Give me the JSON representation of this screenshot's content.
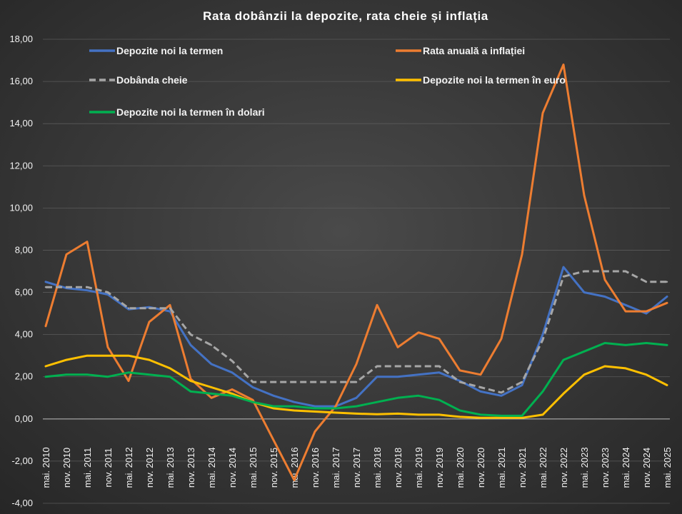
{
  "chart_data": {
    "type": "line",
    "title": "Rata dobânzii la depozite, rata cheie și inflația",
    "xlabel": "",
    "ylabel": "",
    "ylim": [
      -4,
      18
    ],
    "y_ticks": [
      "-4,00",
      "-2,00",
      "0,00",
      "2,00",
      "4,00",
      "6,00",
      "8,00",
      "10,00",
      "12,00",
      "14,00",
      "16,00",
      "18,00"
    ],
    "x_tick_labels": [
      "mai. 2010",
      "nov. 2010",
      "mai. 2011",
      "nov. 2011",
      "mai. 2012",
      "nov. 2012",
      "mai. 2013",
      "nov. 2013",
      "mai. 2014",
      "nov. 2014",
      "mai. 2015",
      "nov. 2015",
      "mai. 2016",
      "nov. 2016",
      "mai. 2017",
      "nov. 2017",
      "mai. 2018",
      "nov. 2018",
      "mai. 2019",
      "nov. 2019",
      "mai. 2020",
      "nov. 2020",
      "mai. 2021",
      "nov. 2021",
      "mai. 2022",
      "nov. 2022",
      "mai. 2023",
      "nov. 2023",
      "mai. 2024",
      "nov. 2024",
      "mai. 2025"
    ],
    "grid": true,
    "background": "#404040",
    "series": [
      {
        "name": "Depozite noi la termen",
        "color": "#4472c4",
        "dash": false,
        "points": [
          [
            "mai. 2010",
            6.5
          ],
          [
            "nov. 2010",
            6.2
          ],
          [
            "mai. 2011",
            6.1
          ],
          [
            "nov. 2011",
            5.9
          ],
          [
            "mai. 2012",
            5.2
          ],
          [
            "nov. 2012",
            5.3
          ],
          [
            "mai. 2013",
            5.1
          ],
          [
            "nov. 2013",
            3.5
          ],
          [
            "mai. 2014",
            2.6
          ],
          [
            "nov. 2014",
            2.2
          ],
          [
            "mai. 2015",
            1.5
          ],
          [
            "nov. 2015",
            1.1
          ],
          [
            "mai. 2016",
            0.8
          ],
          [
            "nov. 2016",
            0.6
          ],
          [
            "mai. 2017",
            0.6
          ],
          [
            "nov. 2017",
            1.0
          ],
          [
            "mai. 2018",
            2.0
          ],
          [
            "nov. 2018",
            2.0
          ],
          [
            "mai. 2019",
            2.1
          ],
          [
            "nov. 2019",
            2.2
          ],
          [
            "mai. 2020",
            1.8
          ],
          [
            "nov. 2020",
            1.3
          ],
          [
            "mai. 2021",
            1.1
          ],
          [
            "nov. 2021",
            1.6
          ],
          [
            "mai. 2022",
            4.0
          ],
          [
            "nov. 2022",
            7.2
          ],
          [
            "mai. 2023",
            6.0
          ],
          [
            "nov. 2023",
            5.8
          ],
          [
            "mai. 2024",
            5.4
          ],
          [
            "nov. 2024",
            5.0
          ],
          [
            "mai. 2025",
            5.8
          ]
        ]
      },
      {
        "name": "Rata anuală a inflației",
        "color": "#ed7d31",
        "dash": false,
        "points": [
          [
            "mai. 2010",
            4.4
          ],
          [
            "nov. 2010",
            7.8
          ],
          [
            "mai. 2011",
            8.4
          ],
          [
            "nov. 2011",
            3.4
          ],
          [
            "mai. 2012",
            1.8
          ],
          [
            "nov. 2012",
            4.6
          ],
          [
            "mai. 2013",
            5.4
          ],
          [
            "nov. 2013",
            1.9
          ],
          [
            "mai. 2014",
            1.0
          ],
          [
            "nov. 2014",
            1.4
          ],
          [
            "mai. 2015",
            0.9
          ],
          [
            "nov. 2015",
            -1.0
          ],
          [
            "mai. 2016",
            -2.9
          ],
          [
            "nov. 2016",
            -0.6
          ],
          [
            "mai. 2017",
            0.6
          ],
          [
            "nov. 2017",
            2.6
          ],
          [
            "mai. 2018",
            5.4
          ],
          [
            "nov. 2018",
            3.4
          ],
          [
            "mai. 2019",
            4.1
          ],
          [
            "nov. 2019",
            3.8
          ],
          [
            "mai. 2020",
            2.3
          ],
          [
            "nov. 2020",
            2.1
          ],
          [
            "mai. 2021",
            3.8
          ],
          [
            "nov. 2021",
            7.8
          ],
          [
            "mai. 2022",
            14.5
          ],
          [
            "nov. 2022",
            16.8
          ],
          [
            "mai. 2023",
            10.6
          ],
          [
            "nov. 2023",
            6.6
          ],
          [
            "mai. 2024",
            5.1
          ],
          [
            "nov. 2024",
            5.1
          ],
          [
            "mai. 2025",
            5.5
          ]
        ]
      },
      {
        "name": "Dobânda cheie",
        "color": "#a6a6a6",
        "dash": true,
        "points": [
          [
            "mai. 2010",
            6.25
          ],
          [
            "nov. 2010",
            6.25
          ],
          [
            "mai. 2011",
            6.25
          ],
          [
            "nov. 2011",
            6.0
          ],
          [
            "mai. 2012",
            5.25
          ],
          [
            "nov. 2012",
            5.25
          ],
          [
            "mai. 2013",
            5.25
          ],
          [
            "nov. 2013",
            4.0
          ],
          [
            "mai. 2014",
            3.5
          ],
          [
            "nov. 2014",
            2.75
          ],
          [
            "mai. 2015",
            1.75
          ],
          [
            "nov. 2015",
            1.75
          ],
          [
            "mai. 2016",
            1.75
          ],
          [
            "nov. 2016",
            1.75
          ],
          [
            "mai. 2017",
            1.75
          ],
          [
            "nov. 2017",
            1.75
          ],
          [
            "mai. 2018",
            2.5
          ],
          [
            "nov. 2018",
            2.5
          ],
          [
            "mai. 2019",
            2.5
          ],
          [
            "nov. 2019",
            2.5
          ],
          [
            "mai. 2020",
            1.75
          ],
          [
            "nov. 2020",
            1.5
          ],
          [
            "mai. 2021",
            1.25
          ],
          [
            "nov. 2021",
            1.75
          ],
          [
            "mai. 2022",
            3.75
          ],
          [
            "nov. 2022",
            6.75
          ],
          [
            "mai. 2023",
            7.0
          ],
          [
            "nov. 2023",
            7.0
          ],
          [
            "mai. 2024",
            7.0
          ],
          [
            "nov. 2024",
            6.5
          ],
          [
            "mai. 2025",
            6.5
          ]
        ]
      },
      {
        "name": "Depozite noi la termen în euro",
        "color": "#ffc000",
        "dash": false,
        "points": [
          [
            "mai. 2010",
            2.5
          ],
          [
            "nov. 2010",
            2.8
          ],
          [
            "mai. 2011",
            3.0
          ],
          [
            "nov. 2011",
            3.0
          ],
          [
            "mai. 2012",
            3.0
          ],
          [
            "nov. 2012",
            2.8
          ],
          [
            "mai. 2013",
            2.4
          ],
          [
            "nov. 2013",
            1.8
          ],
          [
            "mai. 2014",
            1.5
          ],
          [
            "nov. 2014",
            1.2
          ],
          [
            "mai. 2015",
            0.8
          ],
          [
            "nov. 2015",
            0.5
          ],
          [
            "mai. 2016",
            0.4
          ],
          [
            "nov. 2016",
            0.35
          ],
          [
            "mai. 2017",
            0.3
          ],
          [
            "nov. 2017",
            0.25
          ],
          [
            "mai. 2018",
            0.22
          ],
          [
            "nov. 2018",
            0.25
          ],
          [
            "mai. 2019",
            0.2
          ],
          [
            "nov. 2019",
            0.2
          ],
          [
            "mai. 2020",
            0.1
          ],
          [
            "nov. 2020",
            0.05
          ],
          [
            "mai. 2021",
            0.05
          ],
          [
            "nov. 2021",
            0.05
          ],
          [
            "mai. 2022",
            0.2
          ],
          [
            "nov. 2022",
            1.2
          ],
          [
            "mai. 2023",
            2.1
          ],
          [
            "nov. 2023",
            2.5
          ],
          [
            "mai. 2024",
            2.4
          ],
          [
            "nov. 2024",
            2.1
          ],
          [
            "mai. 2025",
            1.6
          ]
        ]
      },
      {
        "name": "Depozite noi la termen în dolari",
        "color": "#00b050",
        "dash": false,
        "points": [
          [
            "mai. 2010",
            2.0
          ],
          [
            "nov. 2010",
            2.1
          ],
          [
            "mai. 2011",
            2.1
          ],
          [
            "nov. 2011",
            2.0
          ],
          [
            "mai. 2012",
            2.2
          ],
          [
            "nov. 2012",
            2.1
          ],
          [
            "mai. 2013",
            2.0
          ],
          [
            "nov. 2013",
            1.3
          ],
          [
            "mai. 2014",
            1.2
          ],
          [
            "nov. 2014",
            1.1
          ],
          [
            "mai. 2015",
            0.8
          ],
          [
            "nov. 2015",
            0.6
          ],
          [
            "mai. 2016",
            0.6
          ],
          [
            "nov. 2016",
            0.5
          ],
          [
            "mai. 2017",
            0.5
          ],
          [
            "nov. 2017",
            0.6
          ],
          [
            "mai. 2018",
            0.8
          ],
          [
            "nov. 2018",
            1.0
          ],
          [
            "mai. 2019",
            1.1
          ],
          [
            "nov. 2019",
            0.9
          ],
          [
            "mai. 2020",
            0.4
          ],
          [
            "nov. 2020",
            0.2
          ],
          [
            "mai. 2021",
            0.15
          ],
          [
            "nov. 2021",
            0.15
          ],
          [
            "mai. 2022",
            1.3
          ],
          [
            "nov. 2022",
            2.8
          ],
          [
            "mai. 2023",
            3.2
          ],
          [
            "nov. 2023",
            3.6
          ],
          [
            "mai. 2024",
            3.5
          ],
          [
            "nov. 2024",
            3.6
          ],
          [
            "mai. 2025",
            3.5
          ]
        ]
      }
    ]
  }
}
